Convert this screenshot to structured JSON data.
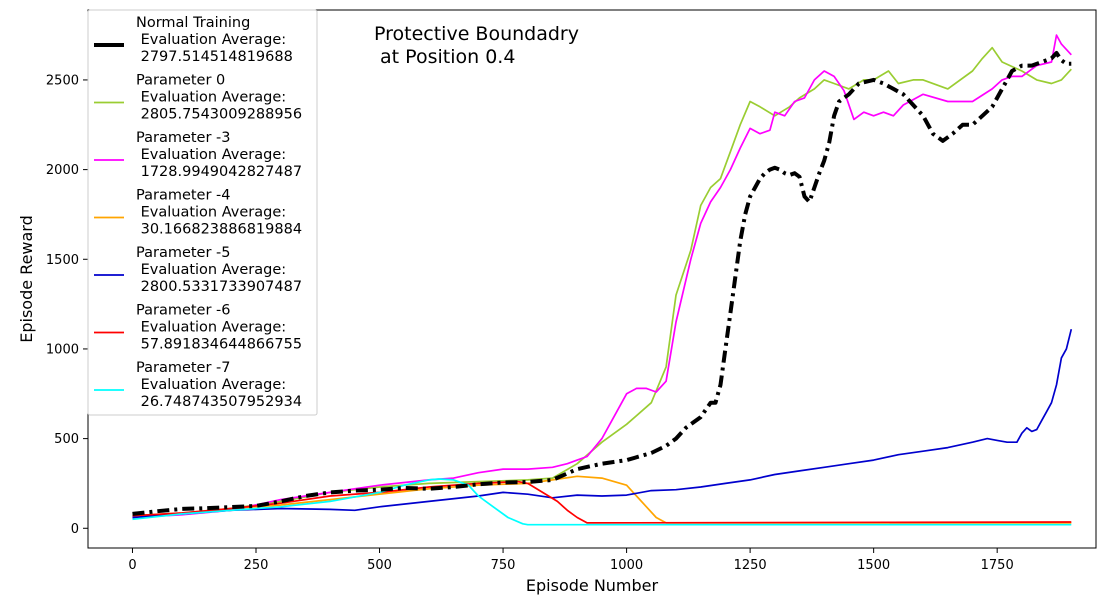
{
  "chart_data": {
    "type": "line",
    "title": [
      "Protective Boundadry",
      " at Position 0.4"
    ],
    "xlabel": "Episode Number",
    "ylabel": "Episode Reward",
    "xlim": [
      -90,
      1950
    ],
    "ylim": [
      -110,
      2890
    ],
    "xticks": [
      0,
      250,
      500,
      750,
      1000,
      1250,
      1500,
      1750
    ],
    "yticks": [
      0,
      500,
      1000,
      1500,
      2000,
      2500
    ],
    "grid": false,
    "legend_position": "upper-left",
    "series": [
      {
        "legend": [
          "Normal Training",
          " Evaluation Average:",
          " 2797.514514819688"
        ],
        "color": "#000000",
        "width": 4,
        "dash": "12,5,3,5",
        "x": [
          0,
          50,
          100,
          150,
          200,
          250,
          300,
          350,
          400,
          450,
          500,
          550,
          600,
          650,
          700,
          750,
          800,
          850,
          900,
          950,
          1000,
          1050,
          1080,
          1100,
          1120,
          1150,
          1170,
          1180,
          1190,
          1200,
          1210,
          1220,
          1230,
          1240,
          1250,
          1260,
          1270,
          1280,
          1290,
          1300,
          1310,
          1320,
          1330,
          1340,
          1350,
          1360,
          1370,
          1380,
          1390,
          1400,
          1410,
          1420,
          1430,
          1450,
          1470,
          1500,
          1520,
          1540,
          1560,
          1580,
          1600,
          1620,
          1640,
          1660,
          1680,
          1700,
          1720,
          1740,
          1760,
          1780,
          1800,
          1820,
          1840,
          1860,
          1870,
          1880,
          1890,
          1900
        ],
        "y": [
          80,
          95,
          108,
          112,
          118,
          125,
          150,
          180,
          200,
          210,
          215,
          225,
          220,
          230,
          245,
          255,
          258,
          270,
          330,
          360,
          380,
          420,
          460,
          500,
          560,
          620,
          700,
          700,
          800,
          1000,
          1200,
          1400,
          1600,
          1750,
          1850,
          1900,
          1950,
          1980,
          2000,
          2010,
          2000,
          1980,
          1970,
          1980,
          1960,
          1850,
          1820,
          1900,
          1980,
          2050,
          2150,
          2300,
          2380,
          2420,
          2480,
          2500,
          2480,
          2450,
          2420,
          2360,
          2300,
          2200,
          2160,
          2200,
          2250,
          2250,
          2300,
          2350,
          2450,
          2550,
          2580,
          2580,
          2600,
          2620,
          2650,
          2610,
          2590,
          2590
        ]
      },
      {
        "legend": [
          "Parameter 0",
          " Evaluation Average:",
          " 2805.7543009288956"
        ],
        "color": "#9acd32",
        "width": 1.7,
        "dash": "",
        "x": [
          0,
          100,
          200,
          300,
          400,
          500,
          600,
          700,
          800,
          850,
          900,
          950,
          1000,
          1050,
          1080,
          1100,
          1130,
          1150,
          1170,
          1190,
          1210,
          1230,
          1250,
          1270,
          1300,
          1330,
          1350,
          1380,
          1400,
          1420,
          1450,
          1480,
          1500,
          1530,
          1550,
          1580,
          1600,
          1650,
          1700,
          1720,
          1740,
          1760,
          1800,
          1830,
          1860,
          1880,
          1900
        ],
        "y": [
          60,
          80,
          110,
          150,
          200,
          230,
          250,
          260,
          270,
          280,
          360,
          480,
          580,
          700,
          900,
          1300,
          1550,
          1800,
          1900,
          1950,
          2100,
          2250,
          2380,
          2350,
          2300,
          2350,
          2400,
          2450,
          2500,
          2480,
          2450,
          2500,
          2500,
          2550,
          2480,
          2500,
          2500,
          2450,
          2550,
          2620,
          2680,
          2600,
          2550,
          2500,
          2480,
          2500,
          2560
        ]
      },
      {
        "legend": [
          "Parameter -3",
          " Evaluation Average:",
          " 1728.9949042827487"
        ],
        "color": "#ff00ff",
        "width": 1.7,
        "dash": "",
        "x": [
          0,
          100,
          200,
          300,
          400,
          500,
          600,
          650,
          700,
          750,
          800,
          850,
          880,
          900,
          920,
          950,
          970,
          1000,
          1020,
          1040,
          1060,
          1080,
          1100,
          1130,
          1150,
          1170,
          1190,
          1210,
          1230,
          1250,
          1270,
          1290,
          1300,
          1320,
          1340,
          1360,
          1380,
          1400,
          1420,
          1440,
          1460,
          1480,
          1500,
          1520,
          1540,
          1560,
          1600,
          1650,
          1700,
          1740,
          1760,
          1780,
          1800,
          1830,
          1860,
          1870,
          1880,
          1900
        ],
        "y": [
          60,
          75,
          100,
          160,
          200,
          240,
          270,
          280,
          310,
          330,
          330,
          340,
          360,
          380,
          400,
          500,
          600,
          750,
          780,
          780,
          760,
          820,
          1150,
          1500,
          1700,
          1820,
          1900,
          2000,
          2120,
          2230,
          2200,
          2220,
          2320,
          2300,
          2380,
          2400,
          2500,
          2550,
          2520,
          2440,
          2280,
          2320,
          2300,
          2320,
          2300,
          2360,
          2420,
          2380,
          2380,
          2450,
          2500,
          2520,
          2520,
          2580,
          2600,
          2750,
          2700,
          2640
        ]
      },
      {
        "legend": [
          "Parameter -4",
          " Evaluation Average:",
          " 30.166823886819884"
        ],
        "color": "#ffa500",
        "width": 1.7,
        "dash": "",
        "x": [
          0,
          100,
          200,
          300,
          400,
          500,
          600,
          700,
          800,
          850,
          900,
          950,
          1000,
          1020,
          1040,
          1060,
          1080,
          1090,
          1900
        ],
        "y": [
          70,
          85,
          110,
          130,
          160,
          190,
          220,
          240,
          250,
          270,
          290,
          280,
          240,
          180,
          120,
          60,
          30,
          30,
          30
        ]
      },
      {
        "legend": [
          "Parameter -5",
          " Evaluation Average:",
          " 2800.5331733907487"
        ],
        "color": "#0000cd",
        "width": 1.7,
        "dash": "",
        "x": [
          0,
          100,
          200,
          300,
          400,
          450,
          500,
          600,
          700,
          750,
          800,
          850,
          900,
          950,
          1000,
          1050,
          1100,
          1150,
          1200,
          1250,
          1300,
          1350,
          1400,
          1450,
          1500,
          1550,
          1600,
          1650,
          1700,
          1730,
          1750,
          1770,
          1790,
          1800,
          1810,
          1820,
          1830,
          1840,
          1850,
          1860,
          1870,
          1880,
          1890,
          1900
        ],
        "y": [
          60,
          80,
          100,
          110,
          105,
          100,
          120,
          150,
          180,
          200,
          190,
          170,
          185,
          180,
          185,
          210,
          215,
          230,
          250,
          270,
          300,
          320,
          340,
          360,
          380,
          410,
          430,
          450,
          480,
          500,
          490,
          480,
          480,
          530,
          560,
          540,
          550,
          600,
          650,
          700,
          800,
          950,
          1000,
          1110
        ]
      },
      {
        "legend": [
          "Parameter -6",
          " Evaluation Average:",
          " 57.891834644866755"
        ],
        "color": "#ff0000",
        "width": 1.7,
        "dash": "",
        "x": [
          0,
          100,
          200,
          300,
          400,
          500,
          600,
          700,
          780,
          800,
          830,
          860,
          880,
          900,
          920,
          1900
        ],
        "y": [
          70,
          85,
          110,
          140,
          180,
          200,
          230,
          250,
          260,
          250,
          200,
          150,
          100,
          60,
          30,
          35
        ]
      },
      {
        "legend": [
          "Parameter -7",
          " Evaluation Average:",
          " 26.748743507952934"
        ],
        "color": "#00ffff",
        "width": 1.7,
        "dash": "",
        "x": [
          0,
          100,
          200,
          300,
          400,
          500,
          550,
          600,
          620,
          650,
          680,
          700,
          730,
          760,
          790,
          800,
          1900
        ],
        "y": [
          50,
          80,
          100,
          120,
          150,
          200,
          240,
          270,
          275,
          270,
          240,
          180,
          120,
          60,
          25,
          20,
          20
        ]
      }
    ]
  }
}
